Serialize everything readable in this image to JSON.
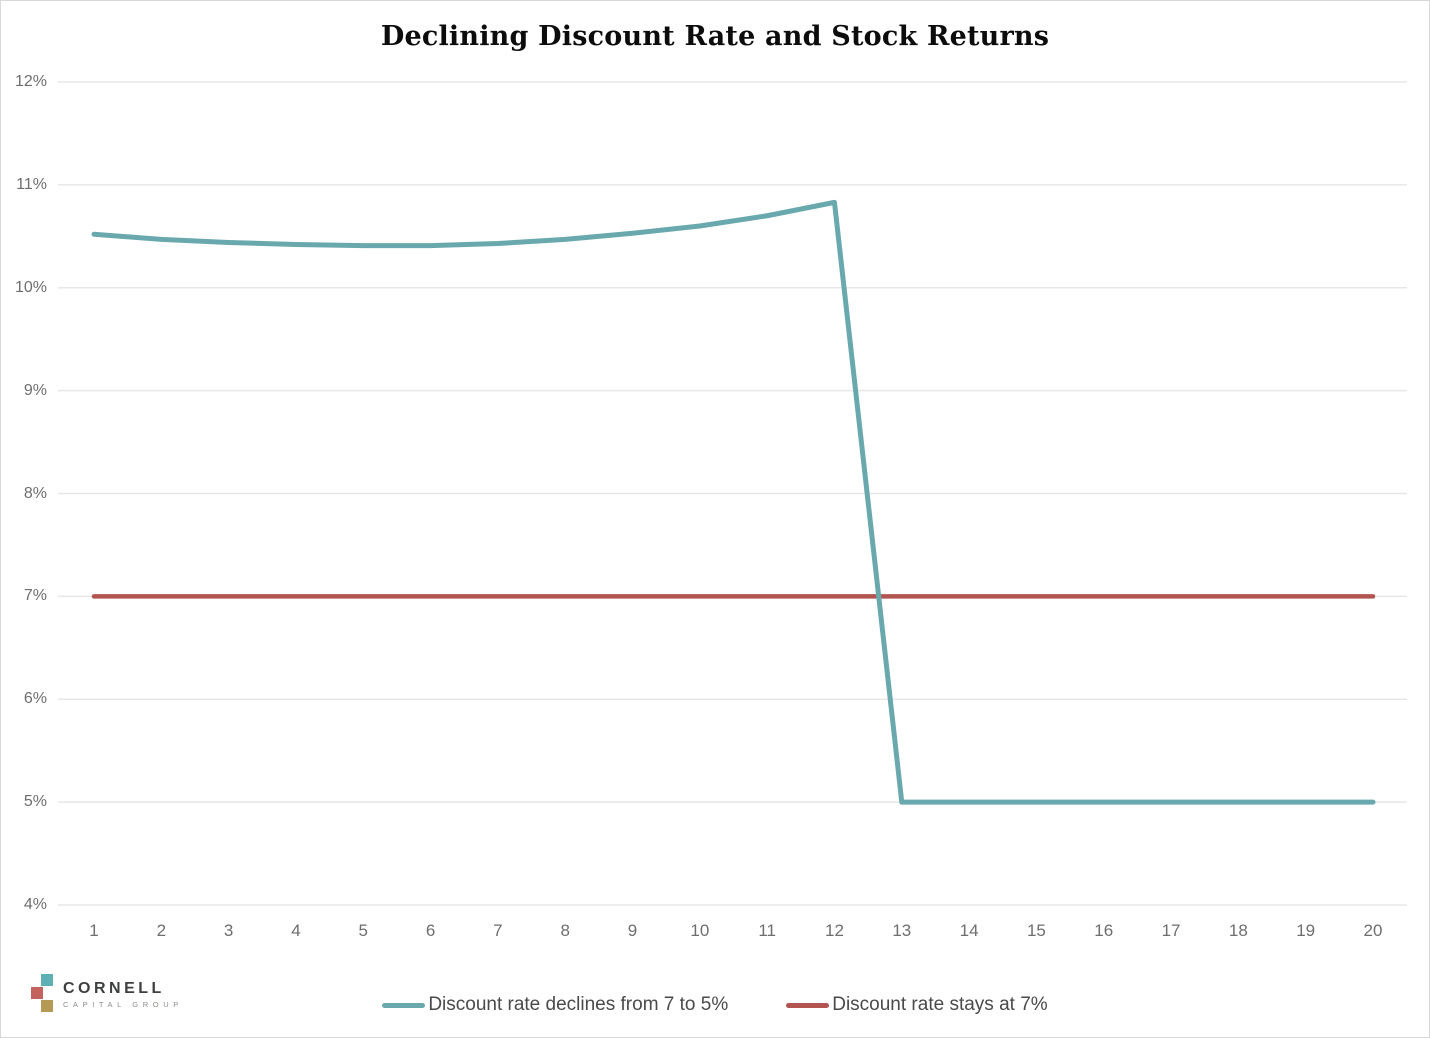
{
  "chart_data": {
    "type": "line",
    "title": "Declining Discount Rate and Stock Returns",
    "x": [
      1,
      2,
      3,
      4,
      5,
      6,
      7,
      8,
      9,
      10,
      11,
      12,
      13,
      14,
      15,
      16,
      17,
      18,
      19,
      20
    ],
    "series": [
      {
        "name": "Discount rate declines from 7 to 5%",
        "color": "#69a9ae",
        "width": 5,
        "values": [
          10.52,
          10.47,
          10.44,
          10.42,
          10.41,
          10.41,
          10.43,
          10.47,
          10.53,
          10.6,
          10.7,
          10.83,
          5.0,
          5.0,
          5.0,
          5.0,
          5.0,
          5.0,
          5.0,
          5.0
        ]
      },
      {
        "name": "Discount rate stays at 7%",
        "color": "#b2544f",
        "width": 4.5,
        "values": [
          7,
          7,
          7,
          7,
          7,
          7,
          7,
          7,
          7,
          7,
          7,
          7,
          7,
          7,
          7,
          7,
          7,
          7,
          7,
          7
        ]
      }
    ],
    "ylim": [
      4,
      12
    ],
    "yticks": [
      {
        "value": 12,
        "label": "12%"
      },
      {
        "value": 11,
        "label": "11%"
      },
      {
        "value": 10,
        "label": "10%"
      },
      {
        "value": 9,
        "label": "9%"
      },
      {
        "value": 8,
        "label": "8%"
      },
      {
        "value": 7,
        "label": "7%"
      },
      {
        "value": 6,
        "label": "6%"
      },
      {
        "value": 5,
        "label": "5%"
      },
      {
        "value": 4,
        "label": "4%"
      }
    ],
    "grid": "horizontal",
    "grid_color": "#e7e7e7",
    "legend_position": "bottom"
  },
  "logo": {
    "name": "CORNELL",
    "subtitle": "CAPITAL GROUP",
    "mark_colors": {
      "teal": "#5fb0b5",
      "red": "#c4625d",
      "gold": "#b59a55"
    }
  }
}
